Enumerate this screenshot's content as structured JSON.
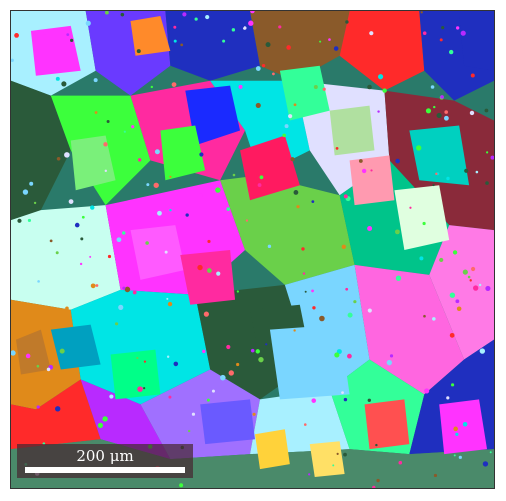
{
  "figure": {
    "type": "EBSD grain orientation map",
    "scale_bar": {
      "label": "200 μm"
    },
    "palette": [
      "#1f2fbf",
      "#00e5e5",
      "#ff2aa0",
      "#3cff3c",
      "#e08a1a",
      "#8a5a2a",
      "#ff33ff",
      "#2a5a3a",
      "#a8f0ff",
      "#ff2a2a",
      "#7ad6ff",
      "#b82aff",
      "#33ff99",
      "#e0e0ff",
      "#6ad04a",
      "#ff6a6a"
    ]
  }
}
